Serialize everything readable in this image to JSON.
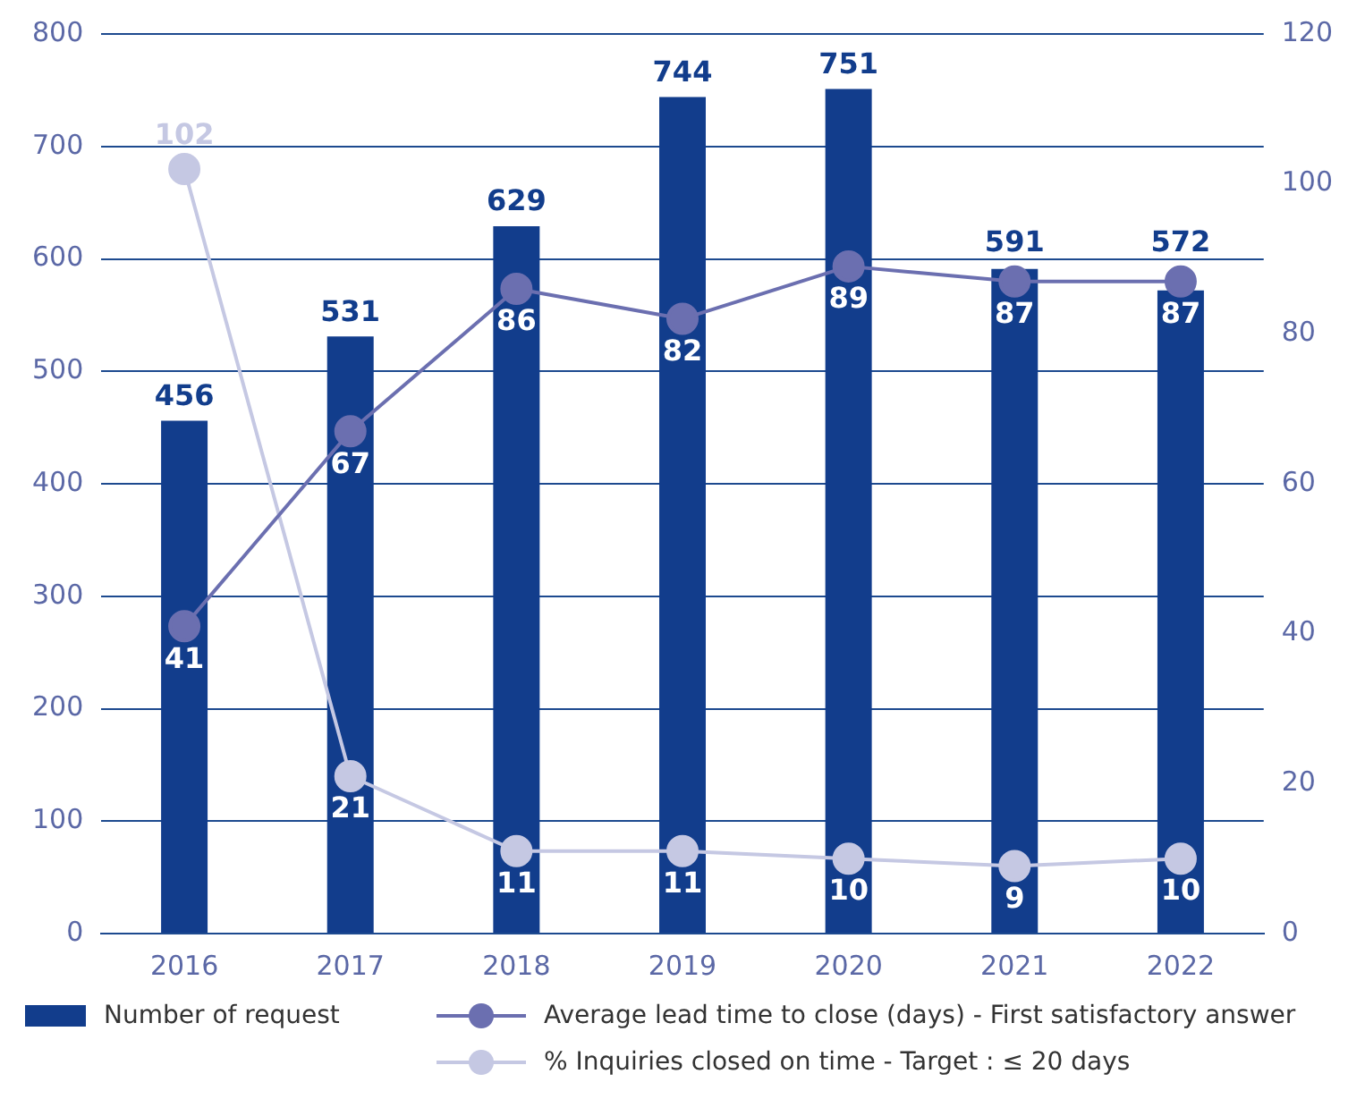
{
  "chart_data": {
    "type": "bar",
    "categories": [
      "2016",
      "2017",
      "2018",
      "2019",
      "2020",
      "2021",
      "2022"
    ],
    "series": [
      {
        "name": "Number of request",
        "color": "#123d8c",
        "values": [
          456,
          531,
          629,
          744,
          751,
          591,
          572
        ]
      },
      {
        "name": "Average lead time to close (days) - First satisfactory answer",
        "type": "line",
        "axis": "y2",
        "color": "#6b6fb0",
        "values": [
          41,
          67,
          86,
          82,
          89,
          87,
          87
        ]
      },
      {
        "name": "% Inquiries closed on time - Target : ≤ 20 days",
        "type": "line",
        "axis": "y2",
        "color": "#c5c8e3",
        "values": [
          102,
          21,
          11,
          11,
          10,
          9,
          10
        ]
      }
    ],
    "ylim": [
      0,
      800
    ],
    "yticks": [
      0,
      100,
      200,
      300,
      400,
      500,
      600,
      700,
      800
    ],
    "y2lim": [
      0,
      120
    ],
    "y2ticks": [
      0,
      20,
      40,
      60,
      80,
      100,
      120
    ],
    "grid": "y",
    "legend": "bottom",
    "marker": "circle",
    "line_style": "solid",
    "data_labels": true
  }
}
